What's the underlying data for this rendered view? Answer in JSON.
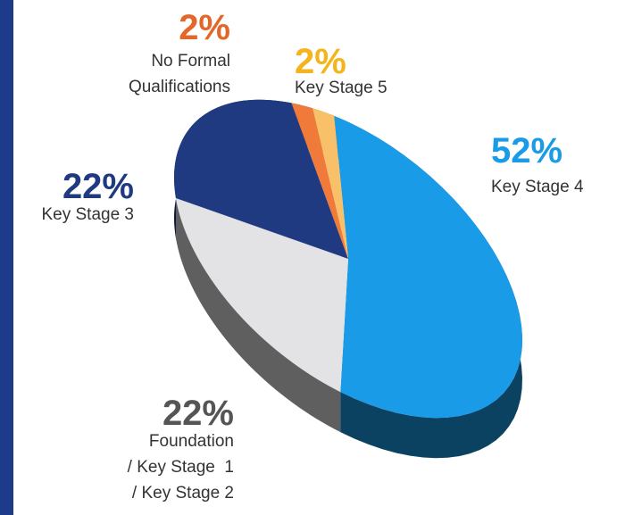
{
  "chart_data": {
    "type": "pie",
    "categories": [
      "Key Stage 4",
      "Foundation\n/ Key Stage  1\n/ Key Stage 2",
      "Key Stage 3",
      "No Formal\nQualifications",
      "Key Stage 5"
    ],
    "values": [
      52,
      22,
      22,
      2,
      2
    ],
    "value_labels": [
      "52%",
      "22%",
      "22%",
      "2%",
      "2%"
    ],
    "colors": [
      "#1a9be8",
      "#e3e3e5",
      "#1f3a80",
      "#f07a3a",
      "#f9c06a"
    ],
    "label_colors": [
      "#1a9be8",
      "#555555",
      "#1f3a80",
      "#e3672a",
      "#f5b31c"
    ]
  }
}
